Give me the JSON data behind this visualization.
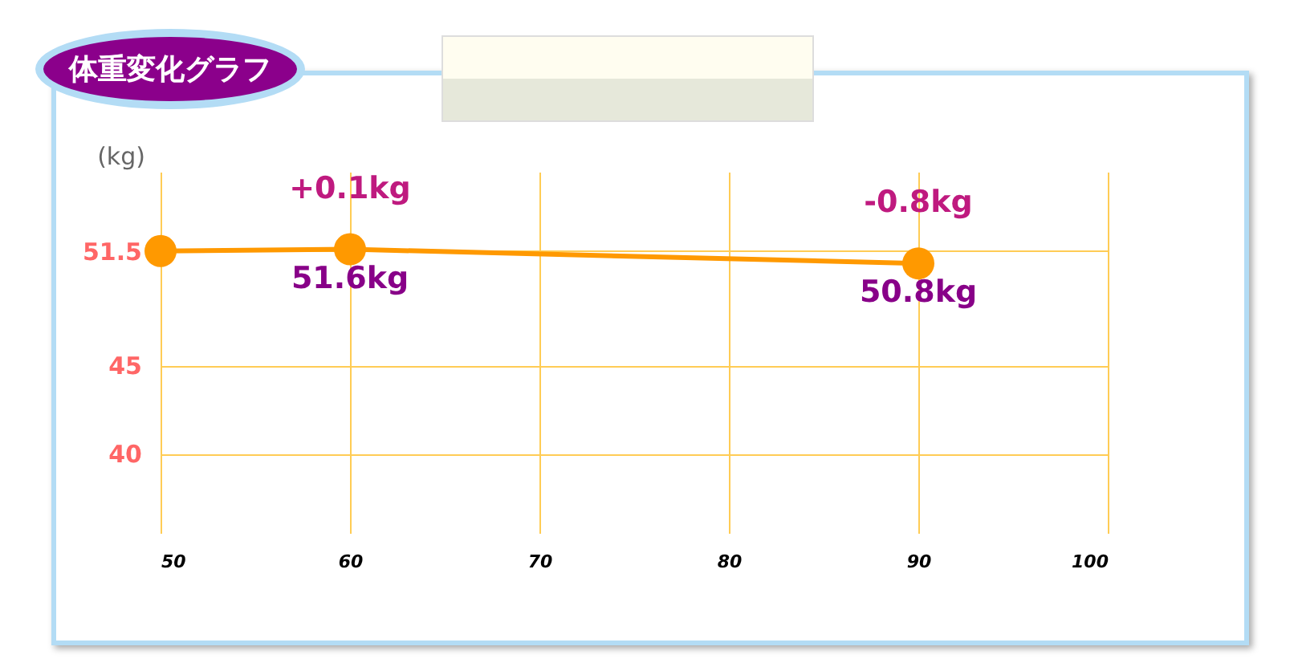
{
  "chart_data": {
    "type": "line",
    "title": "体重変化グラフ",
    "ylabel": "(kg)",
    "x": [
      50,
      60,
      90
    ],
    "series": [
      {
        "color": "#ff9900",
        "values": [
          51.5,
          51.6,
          50.8
        ],
        "value_labels": [
          null,
          "51.6kg",
          "50.8kg"
        ]
      }
    ],
    "annotations": [
      {
        "text": "+0.1kg",
        "x": 60,
        "y": 51.6
      },
      {
        "text": "-0.8kg",
        "x": 90,
        "y": 50.8
      }
    ],
    "xlim": [
      50,
      100
    ],
    "xticks": [
      50,
      60,
      70,
      80,
      90,
      100
    ],
    "ylim": [
      35.5,
      56
    ],
    "yticks": [
      40,
      45,
      51.5
    ],
    "grid": true,
    "marker": "circle",
    "line_style": "solid"
  }
}
